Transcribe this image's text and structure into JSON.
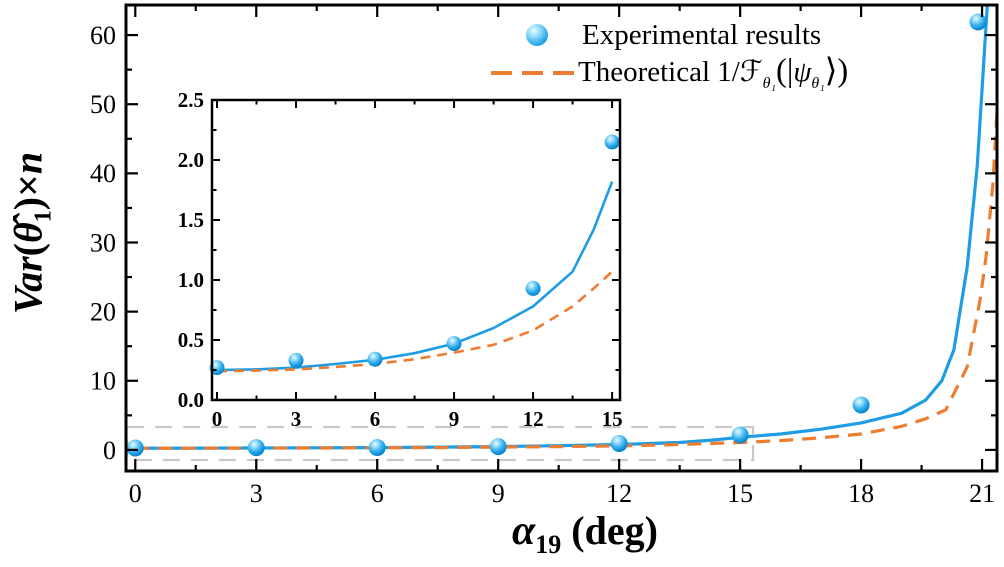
{
  "figure": {
    "background": "#ffffff",
    "colors": {
      "experimental_blue": "#1e9de6",
      "blue_gradient": [
        "#eef9ff",
        "#9adef9",
        "#35aeec",
        "#1090d6",
        "#0a7cc0"
      ],
      "theoretical_orange": "#ed7d31",
      "zoom_box_gray": "#c9c9c9",
      "axis_black": "#000000"
    },
    "legend": {
      "items": [
        {
          "marker": "blue-sphere-icon",
          "label": "Experimental results"
        },
        {
          "marker": "orange-dashed-line-icon",
          "label_parts": {
            "prefix": "Theoretical 1/",
            "fisher": "ℱ",
            "sub1": "θ₁",
            "open": "(|",
            "psi": "ψ",
            "sub2": "θ₁",
            "close": "⟩)"
          }
        }
      ]
    },
    "xlabel": {
      "alpha": "α",
      "sub": "19",
      "rest": " (deg)"
    },
    "ylabel": {
      "v": "Var",
      "open": "(",
      "theta": "θ̂",
      "sub": "1",
      "close": ")×",
      "n": "n"
    }
  },
  "chart_data": {
    "type": "scatter",
    "title": "",
    "xlabel": "alpha_19 (deg)",
    "ylabel": "Var(theta_hat_1) * n",
    "legend_position": "top-center",
    "grid": false,
    "main": {
      "xlim": [
        -0.23,
        21.37
      ],
      "ylim": [
        -3.05,
        64.35
      ],
      "xticks": [
        0,
        3,
        6,
        9,
        12,
        15,
        18,
        21
      ],
      "yticks": [
        0,
        10,
        20,
        30,
        40,
        50,
        60
      ],
      "xminor_step": 1.5,
      "yminor_step": 5,
      "zoom_rect": {
        "x0": -0.2,
        "x1": 15.32,
        "y0": -1.46,
        "y1": 3.31
      },
      "series": [
        {
          "name": "Experimental fit",
          "type": "line",
          "points": [
            [
              0,
              0.25
            ],
            [
              1.5,
              0.26
            ],
            [
              3,
              0.28
            ],
            [
              4.5,
              0.31
            ],
            [
              6,
              0.34
            ],
            [
              7.5,
              0.4
            ],
            [
              9,
              0.48
            ],
            [
              10.5,
              0.61
            ],
            [
              12,
              0.78
            ],
            [
              13.5,
              1.07
            ],
            [
              14.3,
              1.42
            ],
            [
              15,
              1.82
            ],
            [
              16,
              2.3
            ],
            [
              17,
              3.0
            ],
            [
              18,
              3.9
            ],
            [
              19,
              5.3
            ],
            [
              19.6,
              7.2
            ],
            [
              20,
              10
            ],
            [
              20.3,
              14.5
            ],
            [
              20.63,
              26.5
            ],
            [
              20.88,
              41
            ],
            [
              21.03,
              55
            ],
            [
              21.13,
              64.3
            ]
          ]
        },
        {
          "name": "Theoretical 1/F",
          "type": "dashed-line",
          "points": [
            [
              0,
              0.24
            ],
            [
              1.5,
              0.25
            ],
            [
              3,
              0.26
            ],
            [
              4.5,
              0.28
            ],
            [
              6,
              0.3
            ],
            [
              7.5,
              0.34
            ],
            [
              9,
              0.4
            ],
            [
              10.5,
              0.48
            ],
            [
              12,
              0.58
            ],
            [
              13.5,
              0.78
            ],
            [
              15,
              1.07
            ],
            [
              16,
              1.35
            ],
            [
              17,
              1.75
            ],
            [
              18,
              2.3
            ],
            [
              19,
              3.4
            ],
            [
              19.6,
              4.5
            ],
            [
              20.1,
              5.8
            ],
            [
              20.63,
              12
            ],
            [
              20.95,
              21.7
            ],
            [
              21.1,
              28
            ],
            [
              21.27,
              38.6
            ],
            [
              21.37,
              49
            ]
          ]
        },
        {
          "name": "Experimental results",
          "type": "scatter",
          "points": [
            [
              0,
              0.27
            ],
            [
              3,
              0.33
            ],
            [
              6,
              0.34
            ],
            [
              9,
              0.47
            ],
            [
              12,
              0.93
            ],
            [
              15,
              2.15
            ],
            [
              18,
              6.5
            ],
            [
              20.9,
              61.9
            ]
          ]
        }
      ]
    },
    "inset": {
      "xlim": [
        -0.19,
        15.3
      ],
      "ylim": [
        0,
        2.5
      ],
      "xticks": [
        0,
        3,
        6,
        9,
        12,
        15
      ],
      "yticks": [
        0,
        0.5,
        1.0,
        1.5,
        2.0,
        2.5
      ],
      "ytick_labels": [
        "0.0",
        "0.5",
        "1.0",
        "1.5",
        "2.0",
        "2.5"
      ],
      "xminor_step": 1.5,
      "yminor_step": 0.25,
      "series": [
        {
          "name": "Experimental fit",
          "type": "line",
          "points": [
            [
              0,
              0.25
            ],
            [
              1.5,
              0.255
            ],
            [
              3,
              0.27
            ],
            [
              4.5,
              0.3
            ],
            [
              6,
              0.335
            ],
            [
              7.5,
              0.39
            ],
            [
              9,
              0.47
            ],
            [
              10.5,
              0.6
            ],
            [
              12,
              0.78
            ],
            [
              13.5,
              1.07
            ],
            [
              14.3,
              1.42
            ],
            [
              15,
              1.82
            ]
          ]
        },
        {
          "name": "Theoretical 1/F",
          "type": "dashed-line",
          "points": [
            [
              0,
              0.24
            ],
            [
              1.5,
              0.245
            ],
            [
              3,
              0.255
            ],
            [
              4.5,
              0.275
            ],
            [
              6,
              0.3
            ],
            [
              7.5,
              0.34
            ],
            [
              9,
              0.395
            ],
            [
              10.5,
              0.46
            ],
            [
              12,
              0.58
            ],
            [
              13.5,
              0.78
            ],
            [
              14.3,
              0.93
            ],
            [
              15,
              1.07
            ]
          ]
        },
        {
          "name": "Experimental results",
          "type": "scatter",
          "points": [
            [
              0,
              0.27
            ],
            [
              3,
              0.33
            ],
            [
              6,
              0.34
            ],
            [
              9,
              0.47
            ],
            [
              12,
              0.93
            ],
            [
              15,
              2.15
            ]
          ]
        }
      ]
    }
  }
}
